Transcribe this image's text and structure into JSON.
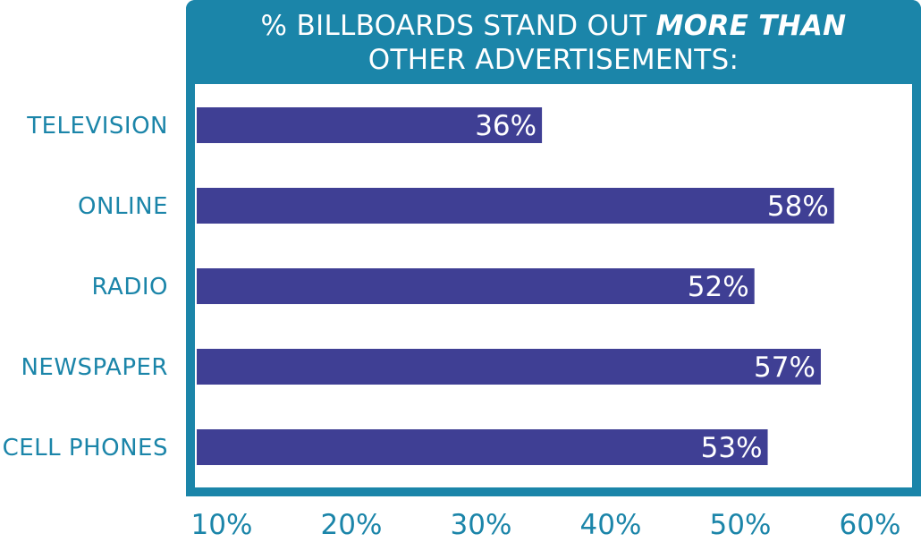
{
  "chart_data": {
    "type": "bar",
    "orientation": "horizontal",
    "title_parts": [
      "% BILLBOARDS STAND OUT ",
      "MORE THAN",
      "OTHER ADVERTISEMENTS:"
    ],
    "categories": [
      "TELEVISION",
      "ONLINE",
      "RADIO",
      "NEWSPAPER",
      "CELL PHONES"
    ],
    "values": [
      36,
      58,
      52,
      57,
      53
    ],
    "data_labels": [
      "36%",
      "58%",
      "52%",
      "57%",
      "53%"
    ],
    "x_ticks": [
      "10%",
      "20%",
      "30%",
      "40%",
      "50%",
      "60%"
    ],
    "xlim": [
      10,
      60
    ],
    "grid": false,
    "legend": "none",
    "colors": {
      "bar": "#3f3f94",
      "frame": "#1b85a9",
      "label_text": "#1b85a9",
      "title_text": "#ffffff"
    }
  }
}
